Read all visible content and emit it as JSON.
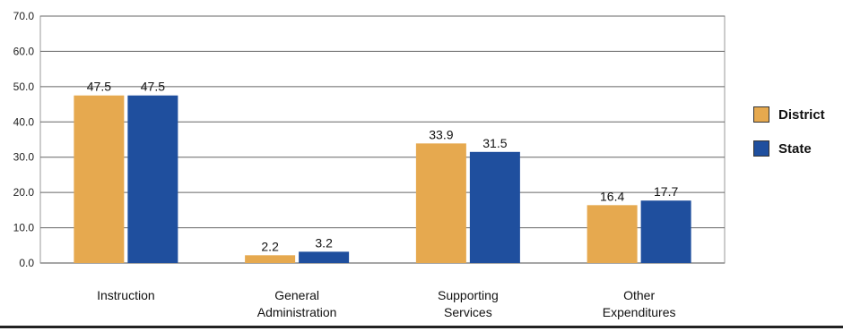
{
  "chart_data": {
    "type": "bar",
    "categories": [
      [
        "Instruction"
      ],
      [
        "General",
        "Administration"
      ],
      [
        "Supporting",
        "Services"
      ],
      [
        "Other",
        "Expenditures"
      ]
    ],
    "series": [
      {
        "name": "District",
        "values": [
          47.5,
          2.2,
          33.9,
          16.4
        ],
        "color": "#E6A94F"
      },
      {
        "name": "State",
        "values": [
          47.5,
          3.2,
          31.5,
          17.7
        ],
        "color": "#1F4F9E"
      }
    ],
    "y_ticks": [
      "0.0",
      "10.0",
      "20.0",
      "30.0",
      "40.0",
      "50.0",
      "60.0",
      "70.0"
    ],
    "ylim": [
      0,
      70
    ],
    "grid": true,
    "legend_position": "right"
  }
}
